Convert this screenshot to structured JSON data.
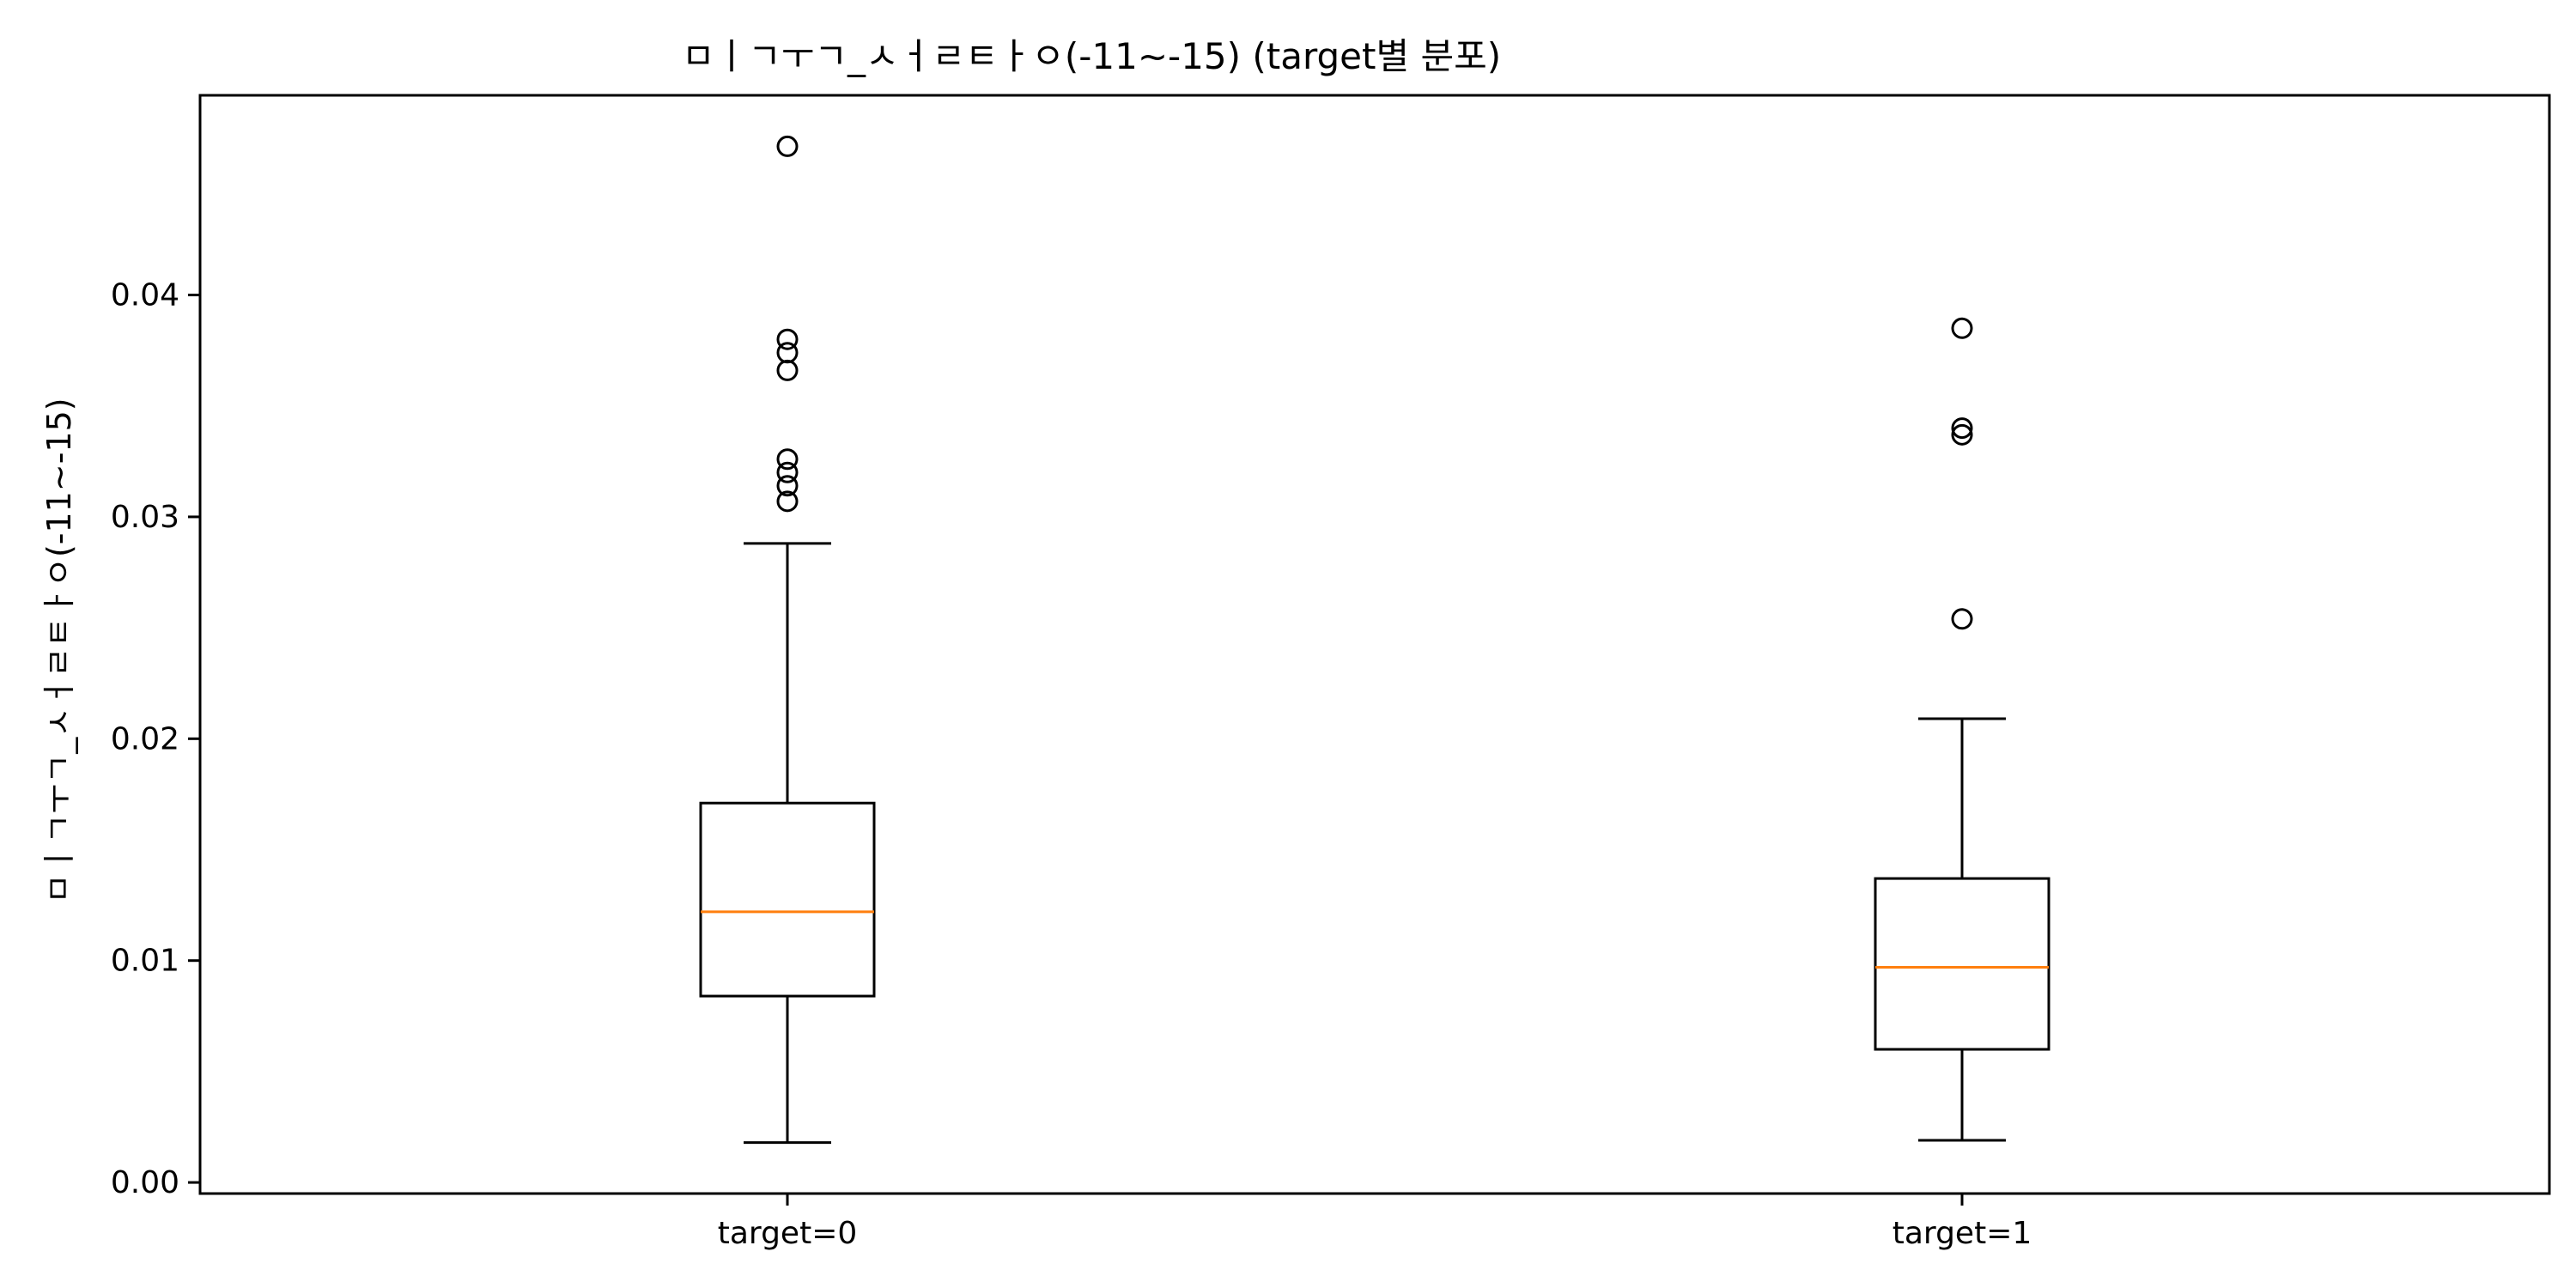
{
  "chart_data": {
    "type": "box",
    "title": "ㅁㅣㄱㅜㄱ_ㅅㅓㄹㅌㅏㅇ(-11~-15) (target별 분포)",
    "xlabel": "",
    "ylabel": "ㅁㅣㄱㅜㄱ_ㅅㅓㄹㅌㅏㅇ(-11~-15)",
    "categories": [
      "target=0",
      "target=1"
    ],
    "ylim": [
      -0.0005,
      0.049
    ],
    "yticks": [
      0.0,
      0.01,
      0.02,
      0.03,
      0.04
    ],
    "ytick_labels": [
      "0.00",
      "0.01",
      "0.02",
      "0.03",
      "0.04"
    ],
    "grid": false,
    "boxes": [
      {
        "category": "target=0",
        "whisker_low": 0.0018,
        "q1": 0.0084,
        "median": 0.0122,
        "q3": 0.0171,
        "whisker_high": 0.0288,
        "outliers": [
          0.0467,
          0.038,
          0.0374,
          0.0366,
          0.0326,
          0.032,
          0.0314,
          0.0307
        ]
      },
      {
        "category": "target=1",
        "whisker_low": 0.0019,
        "q1": 0.006,
        "median": 0.0097,
        "q3": 0.0137,
        "whisker_high": 0.0209,
        "outliers": [
          0.0385,
          0.034,
          0.0337,
          0.0254
        ]
      }
    ],
    "colors": {
      "box": "#000000",
      "median": "#ff7f0e",
      "outlier": "#000000"
    }
  }
}
